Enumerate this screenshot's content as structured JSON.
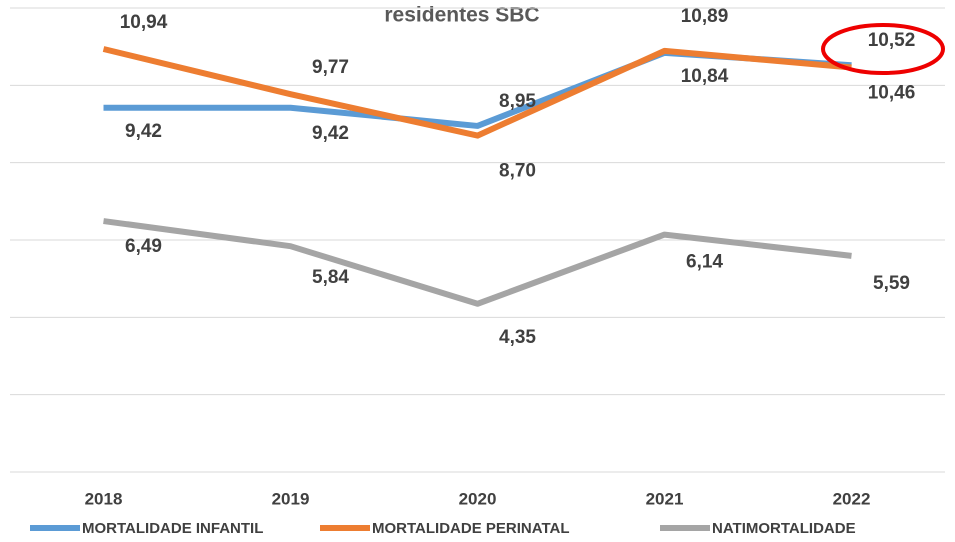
{
  "chart_data": {
    "type": "line",
    "title": "residentes  SBC",
    "categories": [
      "2018",
      "2019",
      "2020",
      "2021",
      "2022"
    ],
    "series": [
      {
        "name": "MORTALIDADE INFANTIL",
        "color": "#5b9bd5",
        "values": [
          9.42,
          9.42,
          8.95,
          10.84,
          10.52
        ],
        "value_labels": [
          "9,42",
          "9,42",
          "8,95",
          "10,84",
          "10,52"
        ]
      },
      {
        "name": "MORTALIDADE PERINATAL",
        "color": "#ed7d31",
        "values": [
          10.94,
          9.77,
          8.7,
          10.89,
          10.46
        ],
        "value_labels": [
          "10,94",
          "9,77",
          "8,70",
          "10,89",
          "10,46"
        ]
      },
      {
        "name": "NATIMORTALIDADE",
        "color": "#a5a5a5",
        "values": [
          6.49,
          5.84,
          4.35,
          6.14,
          5.59
        ],
        "value_labels": [
          "6,49",
          "5,84",
          "4,35",
          "6,14",
          "5,59"
        ]
      }
    ],
    "ylim": [
      0,
      12
    ],
    "yticks": [
      0,
      2,
      4,
      6,
      8,
      10,
      12
    ],
    "grid": true,
    "legend": "bottom"
  }
}
